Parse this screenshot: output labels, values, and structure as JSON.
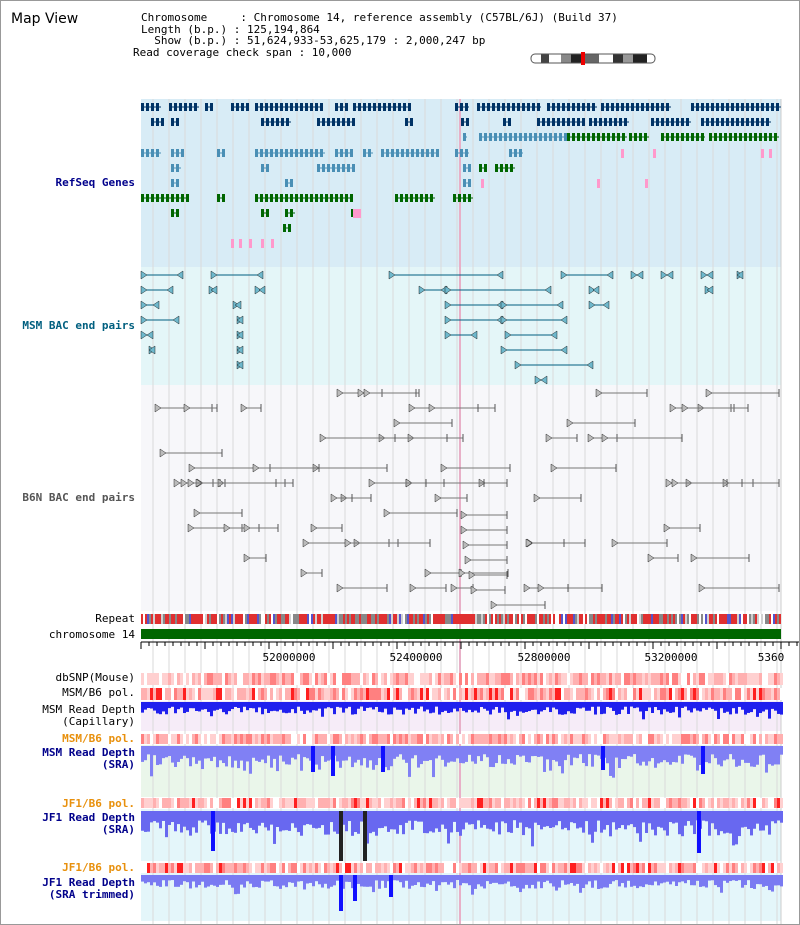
{
  "title": "Map View",
  "info": {
    "chromosome": "Chromosome     : Chromosome 14, reference assembly (C57BL/6J) (Build 37)",
    "length": "Length (b.p.) : 125,194,864",
    "show": "  Show (b.p.) : 51,624,933-53,625,179 : 2,000,247 bp",
    "coverage": "Read coverage check span : 10,000"
  },
  "tracks": {
    "refseq": "RefSeq Genes",
    "msm_bac": "MSM BAC end pairs",
    "b6n_bac": "B6N BAC end pairs",
    "repeat": "Repeat",
    "chromosome": "chromosome 14",
    "dbsnp": "dbSNP(Mouse)",
    "msm_b6_pol": "MSM/B6 pol.",
    "msm_depth_cap": "MSM Read Depth\n(Capillary)",
    "msm_b6_pol2": "MSM/B6 pol.",
    "msm_depth_sra": "MSM Read Depth\n(SRA)",
    "jf1_pol": "JF1/B6 pol.",
    "jf1_depth_sra": "JF1 Read Depth\n(SRA)",
    "jf1_pol2": "JF1/B6 pol.",
    "jf1_depth_trim": "JF1 Read Depth\n(SRA trimmed)"
  },
  "axis": {
    "ticks": [
      "52000000",
      "52400000",
      "52800000",
      "53200000",
      "5360"
    ]
  },
  "colors": {
    "navy": "#003366",
    "steel": "#4a8fb5",
    "green": "#006600",
    "pink": "#ff99cc",
    "red": "#ff0000",
    "depth_blue": "#2222ff"
  }
}
